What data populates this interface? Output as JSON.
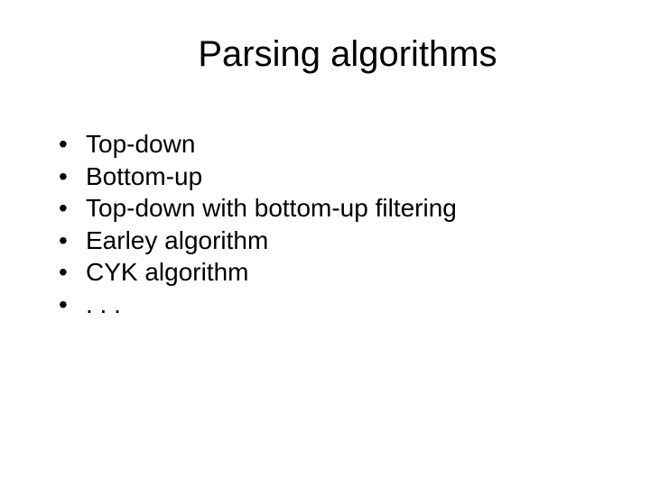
{
  "slide": {
    "title": "Parsing algorithms",
    "bullets": [
      "Top-down",
      "Bottom-up",
      "Top-down with bottom-up filtering",
      "Earley algorithm",
      "CYK algorithm",
      ". . ."
    ]
  },
  "style": {
    "background_color": "#ffffff",
    "text_color": "#000000",
    "title_fontsize": 40,
    "body_fontsize": 28,
    "font_family": "Arial",
    "bullet_marker": "•"
  }
}
